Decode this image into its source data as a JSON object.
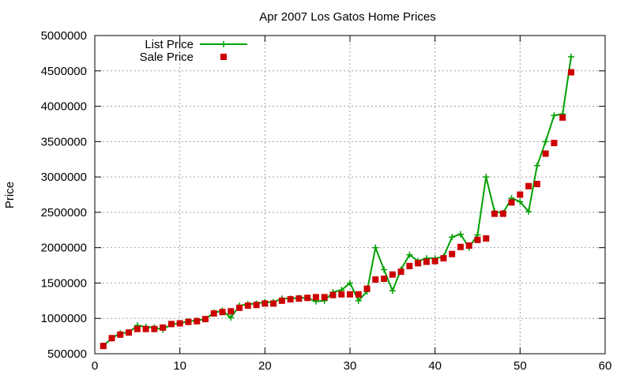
{
  "chart_data": {
    "type": "line",
    "title": "Apr 2007 Los Gatos Home Prices",
    "xlabel": "",
    "ylabel": "Price",
    "xlim": [
      0,
      60
    ],
    "ylim": [
      500000,
      5000000
    ],
    "x_ticks": [
      0,
      10,
      20,
      30,
      40,
      50,
      60
    ],
    "y_ticks": [
      500000,
      1000000,
      1500000,
      2000000,
      2500000,
      3000000,
      3500000,
      4000000,
      4500000,
      5000000
    ],
    "x_tick_labels": [
      "0",
      "10",
      "20",
      "30",
      "40",
      "50",
      "60"
    ],
    "y_tick_labels": [
      "500000",
      "1000000",
      "1500000",
      "2000000",
      "2500000",
      "3000000",
      "3500000",
      "4000000",
      "4500000",
      "5000000"
    ],
    "grid": true,
    "legend_position": "top-left",
    "x": [
      1,
      2,
      3,
      4,
      5,
      6,
      7,
      8,
      9,
      10,
      11,
      12,
      13,
      14,
      15,
      16,
      17,
      18,
      19,
      20,
      21,
      22,
      23,
      24,
      25,
      26,
      27,
      28,
      29,
      30,
      31,
      32,
      33,
      34,
      35,
      36,
      37,
      38,
      39,
      40,
      41,
      42,
      43,
      44,
      45,
      46,
      47,
      48,
      49,
      50,
      51,
      52,
      53,
      54,
      55,
      56
    ],
    "series": [
      {
        "name": "List Price",
        "style": "line-plus",
        "color": "#00a000",
        "values": [
          610000,
          720000,
          790000,
          800000,
          900000,
          880000,
          870000,
          840000,
          920000,
          930000,
          960000,
          970000,
          990000,
          1080000,
          1110000,
          1010000,
          1180000,
          1200000,
          1210000,
          1230000,
          1230000,
          1280000,
          1280000,
          1290000,
          1290000,
          1240000,
          1250000,
          1370000,
          1400000,
          1500000,
          1250000,
          1380000,
          2000000,
          1690000,
          1390000,
          1690000,
          1900000,
          1810000,
          1850000,
          1850000,
          1870000,
          2150000,
          2190000,
          2000000,
          2180000,
          3000000,
          2510000,
          2490000,
          2700000,
          2650000,
          2510000,
          3160000,
          3500000,
          3870000,
          3890000,
          4700000
        ]
      },
      {
        "name": "Sale Price",
        "style": "square",
        "color": "#cc0000",
        "values": [
          610000,
          720000,
          770000,
          800000,
          850000,
          850000,
          850000,
          870000,
          920000,
          930000,
          950000,
          960000,
          990000,
          1070000,
          1090000,
          1100000,
          1150000,
          1180000,
          1190000,
          1210000,
          1210000,
          1250000,
          1270000,
          1280000,
          1290000,
          1300000,
          1300000,
          1330000,
          1340000,
          1340000,
          1340000,
          1420000,
          1550000,
          1560000,
          1620000,
          1660000,
          1740000,
          1780000,
          1800000,
          1810000,
          1850000,
          1910000,
          2010000,
          2030000,
          2110000,
          2130000,
          2480000,
          2480000,
          2640000,
          2750000,
          2870000,
          2900000,
          3330000,
          3480000,
          3840000,
          4480000
        ]
      }
    ]
  }
}
